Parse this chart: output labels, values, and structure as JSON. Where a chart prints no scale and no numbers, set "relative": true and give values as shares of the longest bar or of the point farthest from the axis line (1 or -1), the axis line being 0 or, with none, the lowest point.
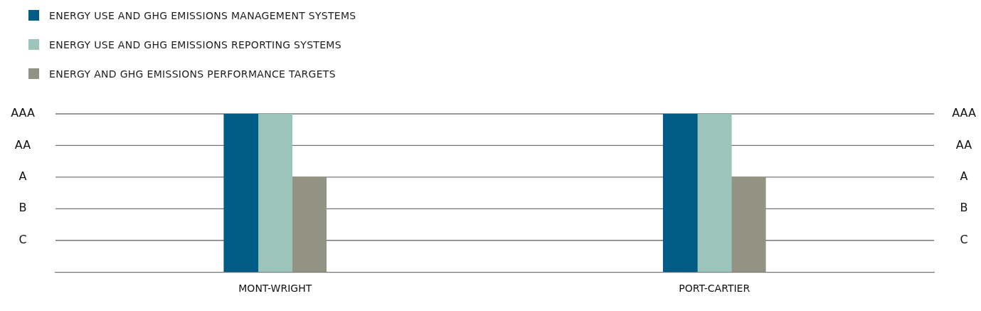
{
  "chart_data": {
    "type": "bar",
    "categories": [
      "MONT-WRIGHT",
      "PORT-CARTIER"
    ],
    "relative": true,
    "series": [
      {
        "name": "ENERGY USE AND GHG EMISSIONS MANAGEMENT SYSTEMS",
        "color": "#005b85",
        "values": [
          1,
          1
        ]
      },
      {
        "name": "ENERGY USE AND GHG EMISSIONS REPORTING SYSTEMS",
        "color": "#9bc4bb",
        "values": [
          1,
          1
        ]
      },
      {
        "name": "ENERGY AND GHG EMISSIONS PERFORMANCE TARGETS",
        "color": "#929382",
        "values": [
          0.6,
          0.6
        ]
      }
    ],
    "ref_lines": [
      {
        "axis": "y",
        "value": 0.2,
        "label": "C",
        "color": "#777777"
      },
      {
        "axis": "y",
        "value": 0.4,
        "label": "B",
        "color": "#777777"
      },
      {
        "axis": "y",
        "value": 0.6,
        "label": "A",
        "color": "#777777"
      },
      {
        "axis": "y",
        "value": 0.8,
        "label": "AA",
        "color": "#777777"
      },
      {
        "axis": "y",
        "value": 1,
        "label": "AAA",
        "color": "#777777"
      }
    ],
    "legend": "top left"
  }
}
